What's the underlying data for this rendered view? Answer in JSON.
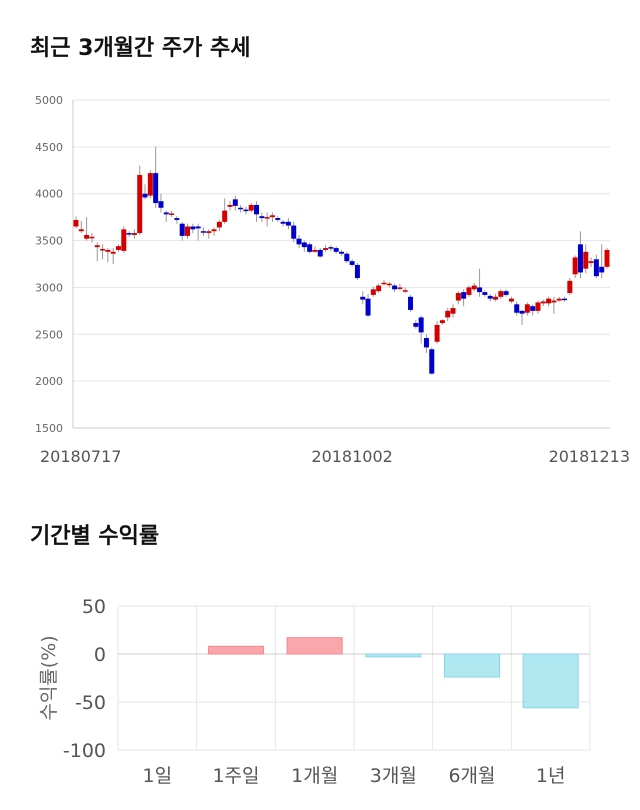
{
  "price_section": {
    "title": "최근 3개월간 주가 추세"
  },
  "return_section": {
    "title": "기간별 수익률"
  },
  "chart_data": [
    {
      "type": "candlestick",
      "ylim": [
        1500,
        5000
      ],
      "yticks": [
        1500,
        2000,
        2500,
        3000,
        3500,
        4000,
        4500,
        5000
      ],
      "xlabels": [
        "20180717",
        "20181002",
        "20181213"
      ],
      "xlabel_index": [
        0,
        52,
        101
      ],
      "colors": {
        "up": "#d40000",
        "down": "#0000cc"
      },
      "candles": [
        [
          3650,
          3720,
          3630,
          3760
        ],
        [
          3600,
          3620,
          3580,
          3710
        ],
        [
          3520,
          3560,
          3500,
          3750
        ],
        [
          3530,
          3540,
          3480,
          3580
        ],
        [
          3430,
          3450,
          3280,
          3480
        ],
        [
          3400,
          3410,
          3300,
          3460
        ],
        [
          3380,
          3400,
          3270,
          3420
        ],
        [
          3360,
          3380,
          3250,
          3420
        ],
        [
          3400,
          3440,
          3380,
          3460
        ],
        [
          3390,
          3620,
          3370,
          3650
        ],
        [
          3580,
          3570,
          3540,
          3600
        ],
        [
          3560,
          3580,
          3520,
          3620
        ],
        [
          3580,
          4200,
          3560,
          4300
        ],
        [
          4000,
          3960,
          3940,
          4100
        ],
        [
          3980,
          4220,
          3950,
          4250
        ],
        [
          4220,
          3900,
          3850,
          4500
        ],
        [
          3920,
          3850,
          3800,
          4000
        ],
        [
          3800,
          3780,
          3700,
          3820
        ],
        [
          3780,
          3790,
          3750,
          3820
        ],
        [
          3740,
          3720,
          3680,
          3760
        ],
        [
          3680,
          3550,
          3500,
          3700
        ],
        [
          3550,
          3650,
          3520,
          3680
        ],
        [
          3650,
          3620,
          3580,
          3680
        ],
        [
          3650,
          3630,
          3500,
          3680
        ],
        [
          3600,
          3590,
          3550,
          3640
        ],
        [
          3580,
          3600,
          3520,
          3620
        ],
        [
          3600,
          3620,
          3550,
          3640
        ],
        [
          3640,
          3700,
          3600,
          3720
        ],
        [
          3700,
          3820,
          3680,
          3950
        ],
        [
          3860,
          3880,
          3820,
          3920
        ],
        [
          3940,
          3870,
          3820,
          3980
        ],
        [
          3850,
          3840,
          3800,
          3880
        ],
        [
          3830,
          3820,
          3780,
          3860
        ],
        [
          3820,
          3880,
          3800,
          3900
        ],
        [
          3880,
          3780,
          3700,
          3920
        ],
        [
          3760,
          3740,
          3700,
          3800
        ],
        [
          3740,
          3750,
          3650,
          3800
        ],
        [
          3750,
          3770,
          3700,
          3800
        ],
        [
          3740,
          3720,
          3700,
          3760
        ],
        [
          3700,
          3680,
          3650,
          3720
        ],
        [
          3700,
          3660,
          3620,
          3740
        ],
        [
          3660,
          3520,
          3480,
          3700
        ],
        [
          3520,
          3460,
          3420,
          3560
        ],
        [
          3480,
          3430,
          3380,
          3500
        ],
        [
          3460,
          3380,
          3360,
          3480
        ],
        [
          3380,
          3400,
          3370,
          3440
        ],
        [
          3400,
          3330,
          3320,
          3420
        ],
        [
          3400,
          3420,
          3380,
          3450
        ],
        [
          3430,
          3420,
          3390,
          3450
        ],
        [
          3420,
          3380,
          3360,
          3440
        ],
        [
          3380,
          3360,
          3340,
          3400
        ],
        [
          3360,
          3280,
          3260,
          3380
        ],
        [
          3280,
          3240,
          3220,
          3300
        ],
        [
          3240,
          3100,
          3080,
          3260
        ],
        [
          2900,
          2870,
          2820,
          2960
        ],
        [
          2880,
          2700,
          2680,
          2930
        ],
        [
          2920,
          2980,
          2900,
          3010
        ],
        [
          2960,
          3020,
          2940,
          3040
        ],
        [
          3040,
          3050,
          3020,
          3080
        ],
        [
          3030,
          3040,
          3000,
          3060
        ],
        [
          3020,
          2980,
          2950,
          3040
        ],
        [
          3000,
          3000,
          2970,
          3040
        ],
        [
          2960,
          2970,
          2940,
          3000
        ],
        [
          2900,
          2760,
          2740,
          2920
        ],
        [
          2620,
          2580,
          2560,
          2650
        ],
        [
          2680,
          2520,
          2400,
          2700
        ],
        [
          2460,
          2360,
          2300,
          2500
        ],
        [
          2340,
          2080,
          2070,
          2360
        ],
        [
          2420,
          2600,
          2400,
          2640
        ],
        [
          2620,
          2650,
          2600,
          2660
        ],
        [
          2680,
          2750,
          2640,
          2780
        ],
        [
          2720,
          2780,
          2680,
          2820
        ],
        [
          2860,
          2940,
          2820,
          2960
        ],
        [
          2950,
          2880,
          2800,
          2980
        ],
        [
          2920,
          3000,
          2900,
          3020
        ],
        [
          2980,
          3020,
          2960,
          3050
        ],
        [
          3000,
          2950,
          2900,
          3200
        ],
        [
          2950,
          2920,
          2900,
          2970
        ],
        [
          2910,
          2880,
          2850,
          2930
        ],
        [
          2870,
          2900,
          2850,
          2930
        ],
        [
          2900,
          2960,
          2880,
          2980
        ],
        [
          2960,
          2920,
          2900,
          2980
        ],
        [
          2850,
          2880,
          2830,
          2900
        ],
        [
          2820,
          2730,
          2700,
          2850
        ],
        [
          2750,
          2720,
          2600,
          2760
        ],
        [
          2730,
          2820,
          2700,
          2840
        ],
        [
          2800,
          2750,
          2700,
          2820
        ],
        [
          2750,
          2840,
          2720,
          2860
        ],
        [
          2830,
          2850,
          2800,
          2870
        ],
        [
          2830,
          2880,
          2800,
          2900
        ],
        [
          2840,
          2860,
          2720,
          2900
        ],
        [
          2860,
          2880,
          2850,
          2900
        ],
        [
          2880,
          2870,
          2850,
          2900
        ],
        [
          2940,
          3070,
          2920,
          3100
        ],
        [
          3140,
          3320,
          3100,
          3340
        ],
        [
          3460,
          3160,
          3100,
          3600
        ],
        [
          3200,
          3380,
          3150,
          3460
        ],
        [
          3260,
          3280,
          3220,
          3320
        ],
        [
          3300,
          3120,
          3100,
          3350
        ],
        [
          3220,
          3160,
          3100,
          3460
        ],
        [
          3220,
          3400,
          3200,
          3420
        ]
      ]
    },
    {
      "type": "bar",
      "ylabel": "수익률(%)",
      "ylim": [
        -100,
        50
      ],
      "yticks": [
        50,
        0,
        -50,
        -100
      ],
      "categories": [
        "1일",
        "1주일",
        "1개월",
        "3개월",
        "6개월",
        "1년"
      ],
      "values": [
        0,
        8,
        17,
        -3,
        -24,
        -56
      ],
      "colors": {
        "positive": "#f9a7aa",
        "negative": "#b0e8f1",
        "positive_edge": "#f4888c",
        "negative_edge": "#8ad6e3"
      }
    }
  ]
}
